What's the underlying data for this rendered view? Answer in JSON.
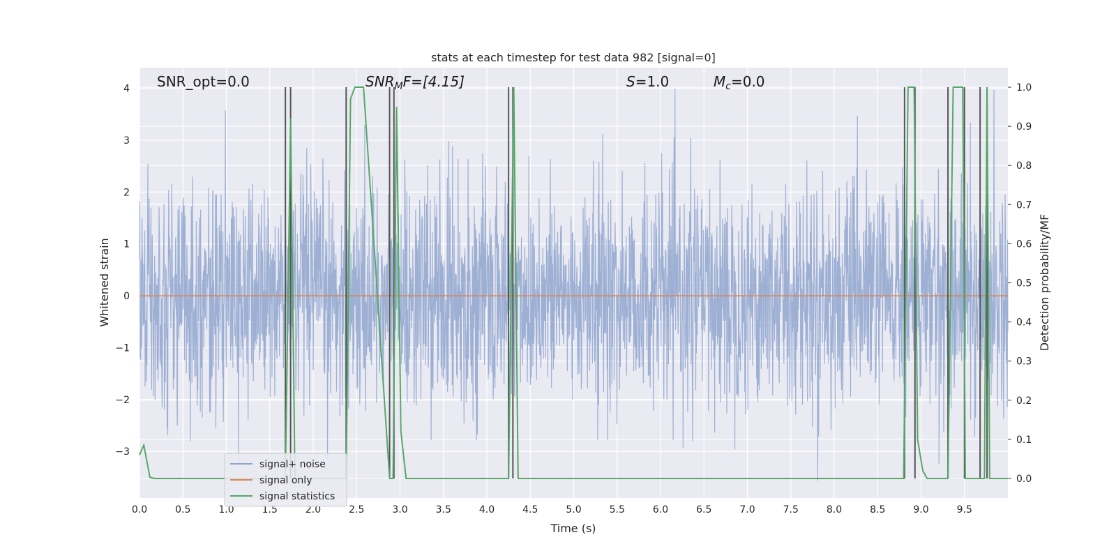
{
  "chart_data": {
    "type": "line",
    "title": "stats at each timestep for test data 982 [signal=0]",
    "xlabel": "Time (s)",
    "ylabel": "Whitened strain",
    "y2label": "Detection probability/MF",
    "xlim": [
      0,
      10
    ],
    "ylim": [
      -3.9,
      4.4
    ],
    "y2lim": [
      -0.05,
      1.05
    ],
    "xticks": [
      "0.0",
      "0.5",
      "1.0",
      "1.5",
      "2.0",
      "2.5",
      "3.0",
      "3.5",
      "4.0",
      "4.5",
      "5.0",
      "5.5",
      "6.0",
      "6.5",
      "7.0",
      "7.5",
      "8.0",
      "8.5",
      "9.0",
      "9.5"
    ],
    "yticks": [
      "4",
      "3",
      "2",
      "1",
      "0",
      "−1",
      "−2",
      "−3"
    ],
    "y2ticks": [
      "1.0",
      "0.9",
      "0.8",
      "0.7",
      "0.6",
      "0.5",
      "0.4",
      "0.3",
      "0.2",
      "0.1",
      "0.0"
    ],
    "grid": true,
    "legend_position": "lower-left",
    "annotations": {
      "snr_opt": "SNR_opt=0.0",
      "snr_mf_var": "SNR",
      "snr_mf_sub": "M",
      "snr_mf_rest": "F=[4.15]",
      "s_var": "S",
      "s_rest": "=1.0",
      "mc_var": "M",
      "mc_sub": "c",
      "mc_rest": "=0.0"
    },
    "series": [
      {
        "name": "signal+ noise",
        "color": "#8fa6cf",
        "description": "whitened noise, amplitude mostly within ±2.5, spikes up to ~4"
      },
      {
        "name": "signal only",
        "color": "#dd8452",
        "values_constant": 0
      },
      {
        "name": "signal statistics",
        "color": "#55a868",
        "axis": "right",
        "x": [
          0.0,
          0.05,
          0.12,
          0.17,
          1.68,
          1.71,
          1.74,
          1.79,
          2.38,
          2.43,
          2.48,
          2.58,
          2.88,
          2.92,
          2.96,
          3.01,
          3.07,
          4.25,
          4.31,
          4.36,
          8.8,
          8.85,
          8.92,
          8.96,
          9.02,
          9.07,
          9.31,
          9.37,
          9.48,
          9.51,
          9.73,
          9.76,
          9.79,
          10.0
        ],
        "y": [
          0.06,
          0.085,
          0.003,
          0.0,
          0.0,
          0.45,
          0.92,
          0.0,
          0.0,
          0.97,
          1.0,
          1.0,
          0.0,
          0.0,
          0.95,
          0.12,
          0.0,
          0.0,
          1.0,
          0.0,
          0.0,
          1.0,
          1.0,
          0.1,
          0.02,
          0.0,
          0.0,
          1.0,
          1.0,
          0.0,
          0.0,
          1.0,
          0.0,
          0.0
        ]
      }
    ],
    "vertical_markers_x": [
      1.68,
      1.74,
      2.38,
      2.88,
      2.93,
      4.25,
      4.3,
      8.81,
      8.93,
      9.31,
      9.5,
      9.68,
      9.76
    ],
    "marker_color": "#555555"
  }
}
